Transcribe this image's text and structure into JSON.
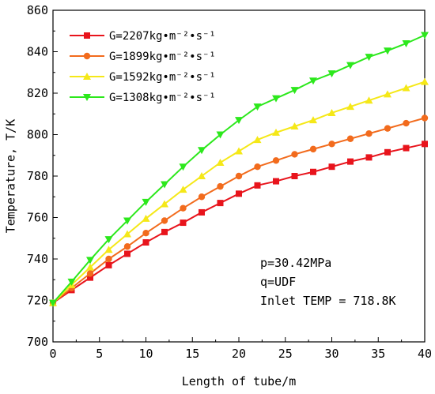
{
  "chart_data": {
    "type": "line",
    "xlabel": "Length of tube/m",
    "ylabel": "Temperature, T/K",
    "xlim": [
      0,
      40
    ],
    "ylim": [
      700,
      860
    ],
    "xticks": [
      0,
      5,
      10,
      15,
      20,
      25,
      30,
      35,
      40
    ],
    "yticks": [
      700,
      720,
      740,
      760,
      780,
      800,
      820,
      840,
      860
    ],
    "grid": false,
    "legend_position": "top-left",
    "x": [
      0,
      2,
      4,
      6,
      8,
      10,
      12,
      14,
      16,
      18,
      20,
      22,
      24,
      26,
      28,
      30,
      32,
      34,
      36,
      38,
      40
    ],
    "series": [
      {
        "name": "G=2207kg•m⁻²•s⁻¹",
        "color": "#e8141c",
        "marker": "square",
        "values": [
          718.8,
          725,
          731,
          737,
          742.5,
          748,
          753,
          757.5,
          762.5,
          767,
          771.5,
          775.5,
          777.5,
          780,
          782,
          784.5,
          787,
          789,
          791.5,
          793.5,
          795.5
        ]
      },
      {
        "name": "G=1899kg•m⁻²•s⁻¹",
        "color": "#f26b1d",
        "marker": "circle",
        "values": [
          718.8,
          726,
          733,
          740,
          746,
          752.5,
          758.5,
          764.5,
          770,
          775,
          780,
          784.5,
          787.5,
          790.5,
          793,
          795.5,
          798,
          800.5,
          803,
          805.5,
          808
        ]
      },
      {
        "name": "G=1592kg•m⁻²•s⁻¹",
        "color": "#f5e818",
        "marker": "triangle-up",
        "values": [
          718.8,
          727.5,
          736,
          744.5,
          752,
          759.5,
          766.5,
          773.5,
          780,
          786.5,
          792,
          797.5,
          801,
          804,
          807,
          810.5,
          813.5,
          816.5,
          819.5,
          822.5,
          825.5
        ]
      },
      {
        "name": "G=1308kg•m⁻²•s⁻¹",
        "color": "#2ce81c",
        "marker": "triangle-down",
        "values": [
          718.8,
          729,
          739.5,
          749.5,
          758.5,
          767.5,
          776,
          784.5,
          792.5,
          800,
          807,
          813.5,
          817.5,
          821.5,
          826,
          829.5,
          833.5,
          837.5,
          840.5,
          844,
          848
        ]
      }
    ],
    "annotations": [
      "p=30.42MPa",
      "q=UDF",
      "Inlet TEMP = 718.8K"
    ]
  }
}
